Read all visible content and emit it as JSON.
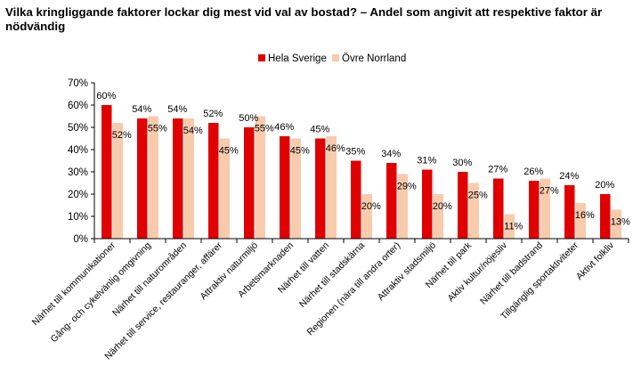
{
  "chart_data": {
    "type": "bar",
    "title": "Vilka kringliggande faktorer lockar dig mest vid val av bostad? – Andel som angivit att respektive faktor är nödvändig",
    "categories": [
      "Närhet till kommunikationer",
      "Gång- och cykelvänlig omgivning",
      "Närhet till naturområden",
      "Närhet till service, restauranger, affärer",
      "Attraktiv naturmiljö",
      "Arbetsmarknaden",
      "Närhet till vatten",
      "Närhet till stadskärna",
      "Regionen (nära till andra orter)",
      "Attraktiv stadsmiljö",
      "Närhet till park",
      "Aktiv kultur/nöjesliv",
      "Närhet till badstrand",
      "Tillgänglig sportaktiviteter",
      "Aktivt folkliv"
    ],
    "series": [
      {
        "name": "Hela Sverige",
        "color": "#e00000",
        "values": [
          60,
          54,
          54,
          52,
          50,
          46,
          45,
          35,
          34,
          31,
          30,
          27,
          26,
          24,
          20
        ],
        "labels": [
          "60%",
          "54%",
          "54%",
          "52%",
          "50%",
          "46%",
          "45%",
          "35%",
          "34%",
          "31%",
          "30%",
          "27%",
          "26%",
          "24%",
          "20%"
        ]
      },
      {
        "name": "Övre Norrland",
        "color": "#f8cbad",
        "values": [
          52,
          55,
          54,
          45,
          55,
          45,
          46,
          20,
          29,
          20,
          25,
          11,
          27,
          16,
          13
        ],
        "labels": [
          "52%",
          "55%",
          "54%",
          "45%",
          "55%",
          "45%",
          "46%",
          "20%",
          "29%",
          "20%",
          "25%",
          "11%",
          "27%",
          "16%",
          "13%"
        ]
      }
    ],
    "yticks": [
      "0%",
      "10%",
      "20%",
      "30%",
      "40%",
      "50%",
      "60%",
      "70%"
    ],
    "ylim": [
      0,
      70
    ],
    "grid": false,
    "legend_position": "top-center"
  }
}
